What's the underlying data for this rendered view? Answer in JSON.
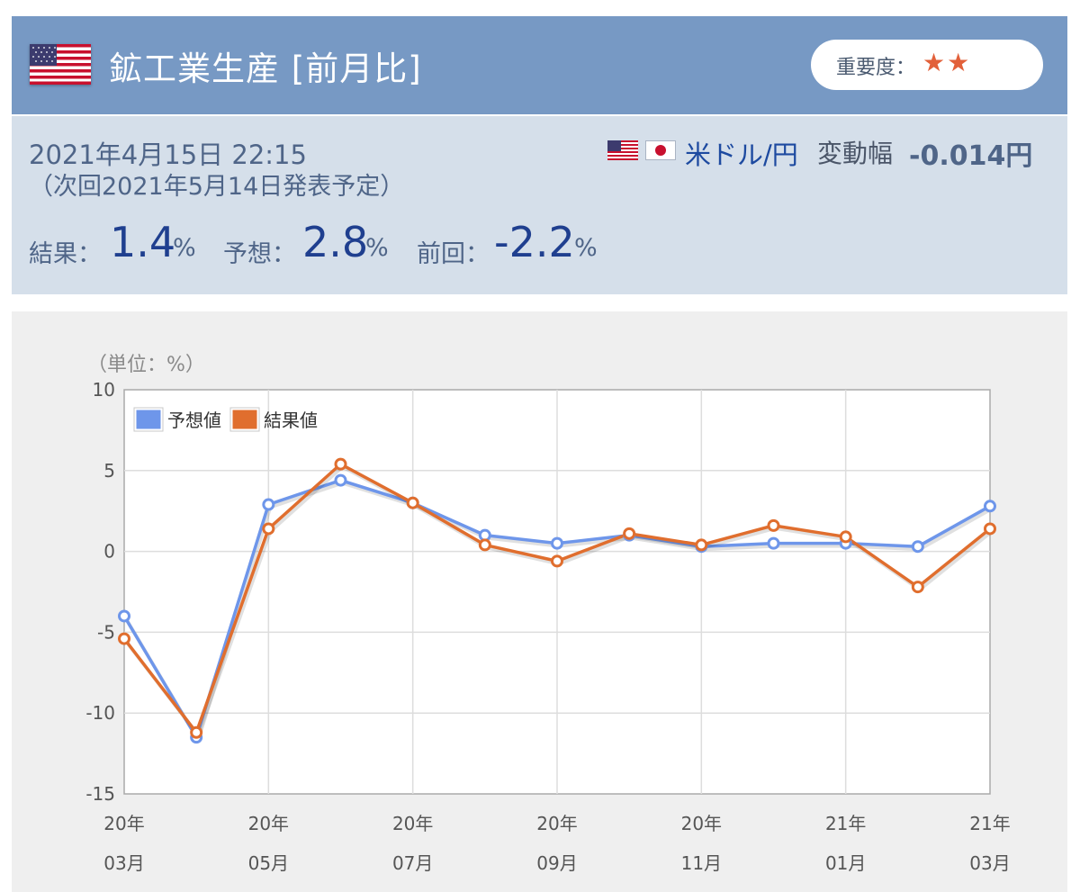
{
  "header": {
    "title": "鉱工業生産 [前月比]",
    "flag_icon": "us-flag-icon",
    "importance_label": "重要度：",
    "importance_stars": "★★",
    "importance_level": 2
  },
  "info": {
    "date": "2021年4月15日 22:15",
    "next_release": "（次回2021年5月14日発表予定）",
    "pair": "米ドル/円",
    "range_label": "変動幅",
    "range_value": "-0.014円",
    "result_label": "結果：",
    "result_value": "1.4",
    "forecast_label": "予想：",
    "forecast_value": "2.8",
    "previous_label": "前回：",
    "previous_value": "-2.2",
    "unit": "%"
  },
  "colors": {
    "header_bg": "#7799c4",
    "info_bg": "#d5dfea",
    "forecast_series": "#6e96ea",
    "result_series": "#e06e2e",
    "star": "#e2603a"
  },
  "chart_data": {
    "type": "line",
    "unit_label": "（単位：%）",
    "ylim": [
      -15,
      10
    ],
    "yticks": [
      10,
      5,
      0,
      -5,
      -10,
      -15
    ],
    "grid": true,
    "legend_position": "top-left",
    "x": [
      "20年03月",
      "20年04月",
      "20年05月",
      "20年06月",
      "20年07月",
      "20年08月",
      "20年09月",
      "20年10月",
      "20年11月",
      "20年12月",
      "21年01月",
      "21年02月",
      "21年03月"
    ],
    "x_tick_labels": [
      {
        "year": "20年",
        "month": "03月"
      },
      {
        "year": "20年",
        "month": "05月"
      },
      {
        "year": "20年",
        "month": "07月"
      },
      {
        "year": "20年",
        "month": "09月"
      },
      {
        "year": "20年",
        "month": "11月"
      },
      {
        "year": "21年",
        "month": "01月"
      },
      {
        "year": "21年",
        "month": "03月"
      }
    ],
    "series": [
      {
        "name": "予想値",
        "values": [
          -4.0,
          -11.5,
          2.9,
          4.4,
          3.0,
          1.0,
          0.5,
          1.0,
          0.3,
          0.5,
          0.5,
          0.3,
          2.8
        ]
      },
      {
        "name": "結果値",
        "values": [
          -5.4,
          -11.2,
          1.4,
          5.4,
          3.0,
          0.4,
          -0.6,
          1.1,
          0.4,
          1.6,
          0.9,
          -2.2,
          1.4
        ]
      }
    ]
  }
}
